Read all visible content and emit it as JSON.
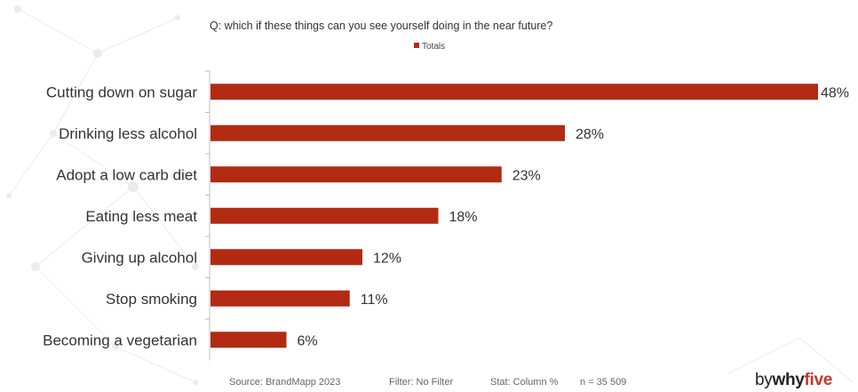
{
  "chart_data": {
    "type": "bar",
    "orientation": "horizontal",
    "title": "Q: which if these things can you see yourself doing in the near future?",
    "categories": [
      "Cutting down on sugar",
      "Drinking less alcohol",
      "Adopt a low carb diet",
      "Eating less meat",
      "Giving up alcohol",
      "Stop smoking",
      "Becoming a vegetarian"
    ],
    "series": [
      {
        "name": "Totals",
        "values": [
          48,
          28,
          23,
          18,
          12,
          11,
          6
        ],
        "labels": [
          "48%",
          "28%",
          "23%",
          "18%",
          "12%",
          "11%",
          "6%"
        ]
      }
    ],
    "xlim": [
      0,
      48
    ],
    "grid": false,
    "legend": "top-center",
    "bar_color": "#b22a12"
  },
  "footer": {
    "source": "Source: BrandMapp 2023",
    "filter": "Filter: No Filter",
    "stat": "Stat: Column %",
    "n": "n = 35 509"
  },
  "logo": {
    "by": "by",
    "why": "why",
    "five": "five"
  },
  "colors": {
    "accent": "#c0392b",
    "bar": "#b22a12",
    "text": "#333333"
  }
}
